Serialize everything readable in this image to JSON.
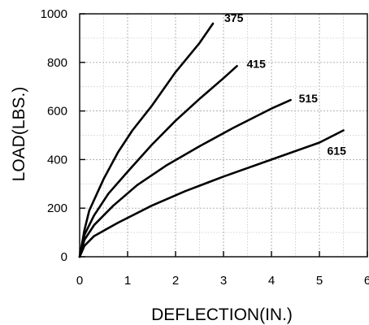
{
  "chart_data": {
    "type": "line",
    "xlabel": "DEFLECTION(IN.)",
    "ylabel": "LOAD(LBS.)",
    "xlim": [
      0,
      6
    ],
    "ylim": [
      0,
      1000
    ],
    "x_ticks": [
      "0",
      "1",
      "2",
      "3",
      "4",
      "5",
      "6"
    ],
    "y_ticks": [
      "0",
      "200",
      "400",
      "600",
      "800",
      "1000"
    ],
    "grid": true,
    "series": [
      {
        "name": "375",
        "x": [
          0,
          0.1,
          0.2,
          0.5,
          0.8,
          1.1,
          1.5,
          2.0,
          2.5,
          2.78
        ],
        "y": [
          0,
          110,
          190,
          320,
          430,
          520,
          620,
          760,
          880,
          960
        ]
      },
      {
        "name": "415",
        "x": [
          0,
          0.1,
          0.3,
          0.6,
          1.0,
          1.5,
          2.0,
          2.5,
          3.0,
          3.28
        ],
        "y": [
          0,
          90,
          170,
          260,
          350,
          460,
          560,
          650,
          735,
          785
        ]
      },
      {
        "name": "515",
        "x": [
          0,
          0.1,
          0.3,
          0.7,
          1.2,
          1.8,
          2.5,
          3.2,
          4.0,
          4.4
        ],
        "y": [
          0,
          70,
          130,
          210,
          295,
          375,
          455,
          530,
          610,
          645
        ]
      },
      {
        "name": "615",
        "x": [
          0,
          0.1,
          0.3,
          0.8,
          1.5,
          2.2,
          3.0,
          4.0,
          5.0,
          5.5
        ],
        "y": [
          0,
          45,
          85,
          140,
          210,
          270,
          330,
          400,
          470,
          520
        ]
      }
    ]
  }
}
